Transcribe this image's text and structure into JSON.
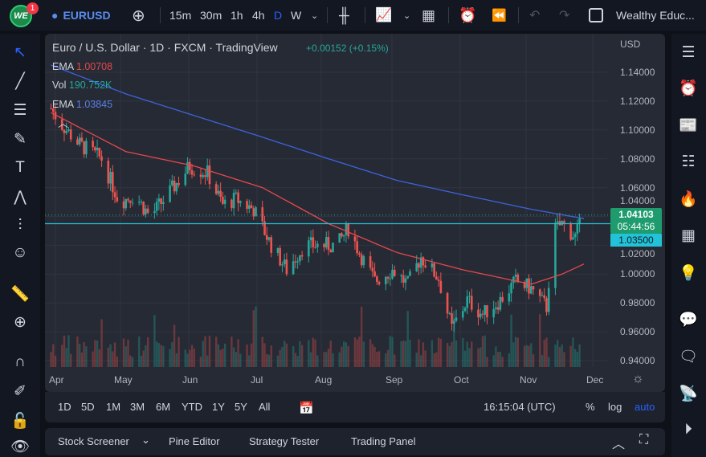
{
  "topbar": {
    "logo": "WE",
    "notifications": "1",
    "symbol": "EURUSD",
    "intervals": [
      "15m",
      "30m",
      "1h",
      "4h",
      "D",
      "W"
    ],
    "active_interval": "D",
    "account": "Wealthy Educ..."
  },
  "legend": {
    "title": "Euro / U.S. Dollar · 1D · FXCM · TradingView",
    "change": "+0.00152 (+0.15%)",
    "ema1_label": "EMA",
    "ema1_value": "1.00708",
    "vol_label": "Vol",
    "vol_value": "190.752K",
    "ema2_label": "EMA",
    "ema2_value": "1.03845"
  },
  "price_axis": {
    "currency": "USD",
    "ticks": [
      "1.14000",
      "1.12000",
      "1.10000",
      "1.08000",
      "1.06000",
      "1.04000",
      "1.02000",
      "1.00000",
      "0.98000",
      "0.96000",
      "0.94000"
    ],
    "last_price": "1.04103",
    "countdown": "05:44:56",
    "line_price": "1.03500"
  },
  "time_axis": {
    "months": [
      "Apr",
      "May",
      "Jun",
      "Jul",
      "Aug",
      "Sep",
      "Oct",
      "Nov",
      "Dec"
    ]
  },
  "range_bar": {
    "ranges": [
      "1D",
      "5D",
      "1M",
      "3M",
      "6M",
      "YTD",
      "1Y",
      "5Y",
      "All"
    ],
    "time": "16:15:04 (UTC)",
    "percent": "%",
    "log": "log",
    "auto": "auto"
  },
  "bottom_tabs": [
    "Stock Screener",
    "Pine Editor",
    "Strategy Tester",
    "Trading Panel"
  ],
  "colors": {
    "up": "#26a69a",
    "down": "#ef5350",
    "ema50": "#e5484d",
    "ema200": "#3d63dd",
    "hline": "#22c3d8",
    "accent": "#2962ff"
  },
  "chart_data": {
    "type": "candlestick",
    "ylim": [
      0.94,
      1.14
    ],
    "closes": [
      [
        "03-28",
        1.115
      ],
      [
        "04-01",
        1.105
      ],
      [
        "04-10",
        1.09
      ],
      [
        "04-20",
        1.08
      ],
      [
        "04-28",
        1.05
      ],
      [
        "05-05",
        1.055
      ],
      [
        "05-12",
        1.04
      ],
      [
        "05-20",
        1.055
      ],
      [
        "05-30",
        1.075
      ],
      [
        "06-07",
        1.07
      ],
      [
        "06-14",
        1.048
      ],
      [
        "06-20",
        1.052
      ],
      [
        "06-28",
        1.045
      ],
      [
        "07-05",
        1.02
      ],
      [
        "07-12",
        1.003
      ],
      [
        "07-20",
        1.02
      ],
      [
        "07-28",
        1.02
      ],
      [
        "08-05",
        1.02
      ],
      [
        "08-10",
        1.032
      ],
      [
        "08-15",
        1.015
      ],
      [
        "08-22",
        0.995
      ],
      [
        "08-30",
        1.003
      ],
      [
        "09-06",
        0.993
      ],
      [
        "09-12",
        1.012
      ],
      [
        "09-20",
        0.997
      ],
      [
        "09-26",
        0.962
      ],
      [
        "10-03",
        0.982
      ],
      [
        "10-10",
        0.972
      ],
      [
        "10-18",
        0.982
      ],
      [
        "10-25",
        0.995
      ],
      [
        "11-01",
        0.99
      ],
      [
        "11-08",
        0.977
      ],
      [
        "11-11",
        1.03
      ],
      [
        "11-15",
        1.035
      ],
      [
        "11-21",
        1.026
      ],
      [
        "11-25",
        1.041
      ]
    ],
    "ema50": [
      [
        "03-28",
        1.112
      ],
      [
        "05-01",
        1.085
      ],
      [
        "06-01",
        1.075
      ],
      [
        "07-01",
        1.06
      ],
      [
        "08-01",
        1.035
      ],
      [
        "09-01",
        1.015
      ],
      [
        "10-01",
        1.003
      ],
      [
        "11-01",
        0.993
      ],
      [
        "11-15",
        1.0
      ],
      [
        "11-25",
        1.007
      ]
    ],
    "ema200": [
      [
        "03-28",
        1.145
      ],
      [
        "05-01",
        1.125
      ],
      [
        "06-01",
        1.11
      ],
      [
        "07-01",
        1.095
      ],
      [
        "08-01",
        1.08
      ],
      [
        "09-01",
        1.065
      ],
      [
        "10-01",
        1.055
      ],
      [
        "11-01",
        1.045
      ],
      [
        "11-25",
        1.0385
      ]
    ]
  }
}
